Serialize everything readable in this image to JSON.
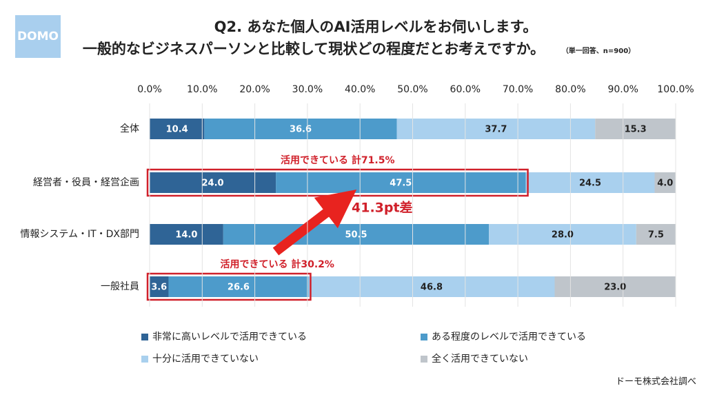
{
  "chart_data": {
    "type": "stacked-bar-horizontal",
    "logo": "DOMO",
    "title": "Q2. あなた個人のAI活用レベルをお伺いします。",
    "subtitle": "一般的なビジネスパーソンと比較して現状どの程度だとお考えですか。",
    "note": "（単一回答、n=900）",
    "source": "ドーモ株式会社調べ",
    "categories": [
      "全体",
      "経営者・役員・経営企画",
      "情報システム・IT・DX部門",
      "一般社員"
    ],
    "series": [
      {
        "name": "非常に高いレベルで活用できている",
        "color": "#2f6496",
        "values": [
          10.4,
          24.0,
          14.0,
          3.6
        ],
        "value_labels": [
          "10.4",
          "24.0",
          "14.0",
          "3.6"
        ]
      },
      {
        "name": "ある程度のレベルで活用できている",
        "color": "#4d9bcb",
        "values": [
          36.6,
          47.5,
          50.5,
          26.6
        ],
        "value_labels": [
          "36.6",
          "47.5",
          "50.5",
          "26.6"
        ]
      },
      {
        "name": "十分に活用できていない",
        "color": "#a9d0ee",
        "values": [
          37.7,
          24.5,
          28.0,
          46.8
        ],
        "value_labels": [
          "37.7",
          "24.5",
          "28.0",
          "46.8"
        ]
      },
      {
        "name": "全く活用できていない",
        "color": "#bfc5cb",
        "values": [
          15.3,
          4.0,
          7.5,
          23.0
        ],
        "value_labels": [
          "15.3",
          "4.0",
          "7.5",
          "23.0"
        ]
      }
    ],
    "xlim": [
      0,
      100
    ],
    "xticks": [
      {
        "value": 0,
        "label": "0.0%"
      },
      {
        "value": 10,
        "label": "10.0%"
      },
      {
        "value": 20,
        "label": "20.0%"
      },
      {
        "value": 30,
        "label": "30.0%"
      },
      {
        "value": 40,
        "label": "40.0%"
      },
      {
        "value": 50,
        "label": "50.0%"
      },
      {
        "value": 60,
        "label": "60.0%"
      },
      {
        "value": 70,
        "label": "70.0%"
      },
      {
        "value": 80,
        "label": "80.0%"
      },
      {
        "value": 90,
        "label": "90.0%"
      },
      {
        "value": 100,
        "label": "100.0%"
      }
    ],
    "grid": true,
    "annotations": [
      "活用できている 計71.5%",
      "活用できている 計30.2%",
      "41.3pt差"
    ]
  }
}
